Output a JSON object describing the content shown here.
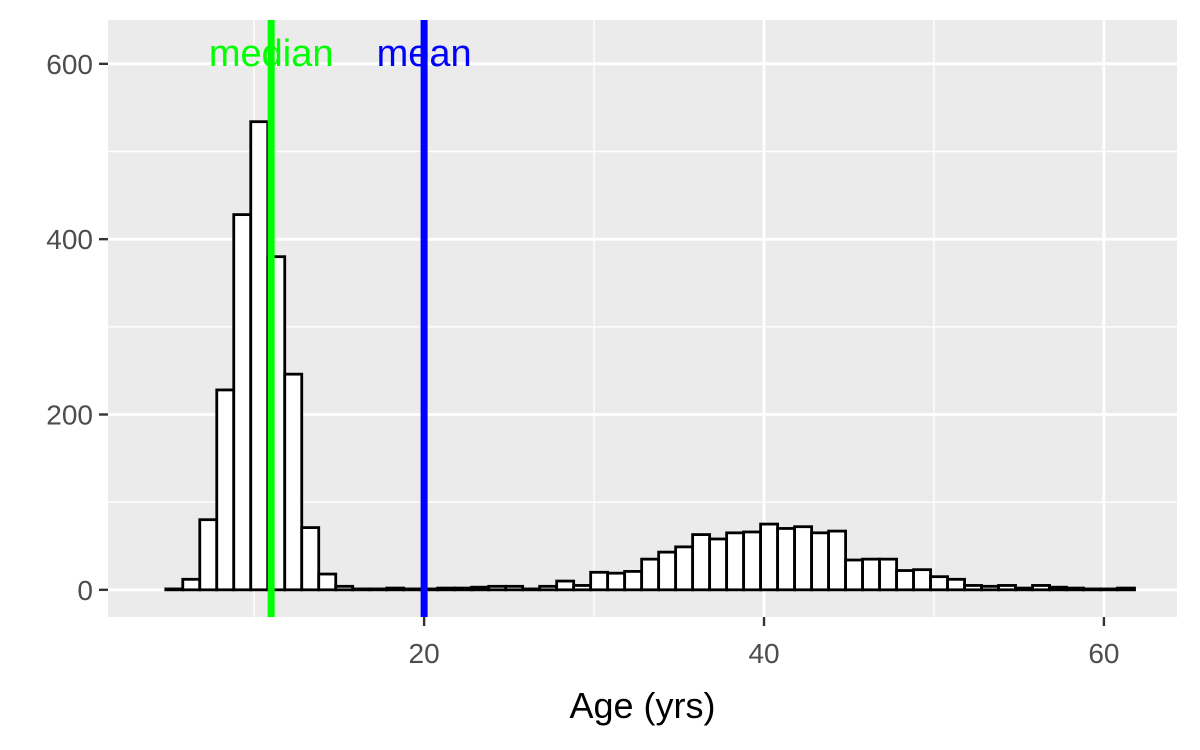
{
  "chart_data": {
    "type": "histogram",
    "title": "",
    "xlabel": "Age (yrs)",
    "ylabel": "",
    "xlim": [
      1.4,
      64.3
    ],
    "ylim": [
      -31.0,
      650.0
    ],
    "x_ticks": [
      20,
      40,
      60
    ],
    "x_tick_labels": [
      "20",
      "40",
      "60"
    ],
    "y_ticks": [
      0,
      200,
      400,
      600
    ],
    "y_tick_labels": [
      "0",
      "200",
      "400",
      "600"
    ],
    "x_minor_ticks": [
      10,
      30,
      50
    ],
    "y_minor_ticks": [
      100,
      300,
      500
    ],
    "grid": true,
    "panel_background": "#ebebeb",
    "bar_fill": "#ffffff",
    "bar_outline": "#000000",
    "bin_width": 1,
    "bins_start": [
      4.8,
      5.8,
      6.8,
      7.8,
      8.8,
      9.8,
      10.8,
      11.8,
      12.8,
      13.8,
      14.8,
      15.8,
      16.8,
      17.8,
      18.8,
      19.8,
      20.8,
      21.8,
      22.8,
      23.8,
      24.8,
      25.8,
      26.8,
      27.8,
      28.8,
      29.8,
      30.8,
      31.8,
      32.8,
      33.8,
      34.8,
      35.8,
      36.8,
      37.8,
      38.8,
      39.8,
      40.8,
      41.8,
      42.8,
      43.8,
      44.8,
      45.8,
      46.8,
      47.8,
      48.8,
      49.8,
      50.8,
      51.8,
      52.8,
      53.8,
      54.8,
      55.8,
      56.8,
      57.8,
      58.8,
      59.8,
      60.8
    ],
    "counts": [
      1,
      12,
      80,
      228,
      428,
      534,
      380,
      246,
      71,
      18,
      4,
      1,
      1,
      2,
      1,
      1,
      2,
      2,
      3,
      4,
      4,
      1,
      4,
      10,
      5,
      20,
      19,
      21,
      35,
      43,
      49,
      63,
      58,
      65,
      66,
      75,
      70,
      72,
      65,
      67,
      34,
      35,
      35,
      22,
      23,
      15,
      12,
      5,
      4,
      5,
      2,
      5,
      3,
      2,
      1,
      1,
      2
    ],
    "vlines": [
      {
        "label": "median",
        "x": 11.0,
        "color": "#00ff00"
      },
      {
        "label": "mean",
        "x": 20.0,
        "color": "#0000ff"
      }
    ]
  }
}
